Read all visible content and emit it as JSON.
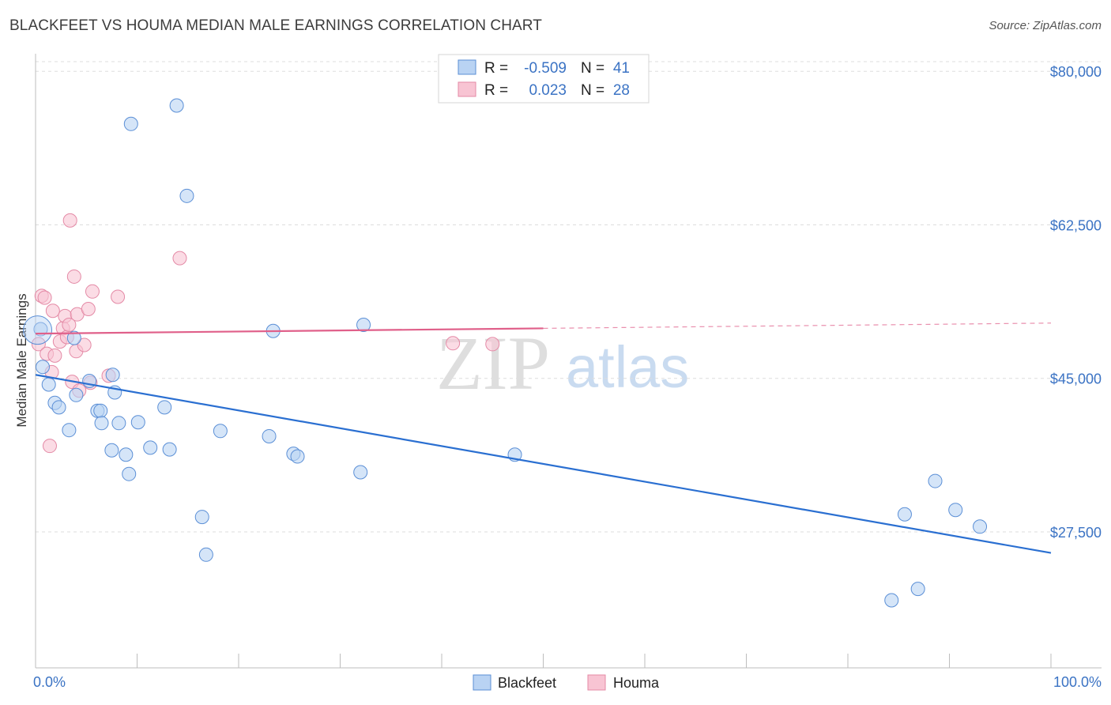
{
  "title": "BLACKFEET VS HOUMA MEDIAN MALE EARNINGS CORRELATION CHART",
  "source": "Source: ZipAtlas.com",
  "watermark": {
    "zip": "ZIP",
    "atlas": "atlas"
  },
  "colors": {
    "blackfeet_fill": "#b9d3f3",
    "blackfeet_stroke": "#5b8fd6",
    "blackfeet_line": "#2a6fd1",
    "houma_fill": "#f8c4d3",
    "houma_stroke": "#e48aa6",
    "houma_line": "#e0608a",
    "tick_text": "#3b73c4",
    "grid": "#dddddd"
  },
  "legend": {
    "rows": [
      {
        "r_label": "R =",
        "r_value": "-0.509",
        "n_label": "N =",
        "n_value": "41"
      },
      {
        "r_label": "R =",
        "r_value": "0.023",
        "n_label": "N =",
        "n_value": "28"
      }
    ]
  },
  "chart_data": {
    "type": "scatter",
    "title": "BLACKFEET VS HOUMA MEDIAN MALE EARNINGS CORRELATION CHART",
    "xlabel": "",
    "ylabel": "Median Male Earnings",
    "xlim": [
      0,
      100
    ],
    "ylim": [
      12000,
      82000
    ],
    "x_ticks_labels": [
      "0.0%",
      "100.0%"
    ],
    "y_ticks": [
      80000,
      62500,
      45000,
      27500
    ],
    "y_tick_labels": [
      "$80,000",
      "$62,500",
      "$45,000",
      "$27,500"
    ],
    "grid": true,
    "legend_position": "top-center",
    "series": [
      {
        "name": "Blackfeet",
        "points": [
          [
            0.5,
            50600
          ],
          [
            0.7,
            46300
          ],
          [
            1.3,
            44300
          ],
          [
            1.9,
            42200
          ],
          [
            2.3,
            41700
          ],
          [
            3.3,
            39100
          ],
          [
            3.8,
            49600
          ],
          [
            4.0,
            43100
          ],
          [
            6.1,
            41300
          ],
          [
            5.3,
            44700
          ],
          [
            6.4,
            41300
          ],
          [
            6.5,
            39900
          ],
          [
            7.5,
            36800
          ],
          [
            8.2,
            39900
          ],
          [
            7.6,
            45400
          ],
          [
            7.8,
            43400
          ],
          [
            9.2,
            34100
          ],
          [
            10.1,
            40000
          ],
          [
            8.9,
            36300
          ],
          [
            9.4,
            74000
          ],
          [
            11.3,
            37100
          ],
          [
            12.7,
            41700
          ],
          [
            13.2,
            36900
          ],
          [
            13.9,
            76100
          ],
          [
            14.9,
            65800
          ],
          [
            16.4,
            29200
          ],
          [
            16.8,
            24900
          ],
          [
            18.2,
            39000
          ],
          [
            23.0,
            38400
          ],
          [
            23.4,
            50400
          ],
          [
            25.4,
            36400
          ],
          [
            25.8,
            36100
          ],
          [
            32.0,
            34300
          ],
          [
            32.3,
            51100
          ],
          [
            47.2,
            36300
          ],
          [
            84.3,
            19700
          ],
          [
            85.6,
            29500
          ],
          [
            86.9,
            21000
          ],
          [
            88.6,
            33300
          ],
          [
            90.6,
            30000
          ],
          [
            93.0,
            28100
          ]
        ],
        "trend": {
          "x": [
            0,
            100
          ],
          "y": [
            45400,
            25100
          ]
        }
      },
      {
        "name": "Houma",
        "points": [
          [
            0.3,
            48900
          ],
          [
            0.6,
            54400
          ],
          [
            0.9,
            54200
          ],
          [
            1.1,
            47800
          ],
          [
            1.4,
            37300
          ],
          [
            1.6,
            45700
          ],
          [
            1.7,
            52700
          ],
          [
            1.9,
            47600
          ],
          [
            2.4,
            49200
          ],
          [
            2.7,
            50700
          ],
          [
            2.9,
            52100
          ],
          [
            3.1,
            49700
          ],
          [
            3.3,
            51100
          ],
          [
            3.4,
            63000
          ],
          [
            3.6,
            44600
          ],
          [
            3.8,
            56600
          ],
          [
            4.0,
            48100
          ],
          [
            4.1,
            52300
          ],
          [
            4.3,
            43600
          ],
          [
            4.8,
            48800
          ],
          [
            5.2,
            52900
          ],
          [
            5.4,
            44500
          ],
          [
            5.6,
            54900
          ],
          [
            7.2,
            45300
          ],
          [
            8.1,
            54300
          ],
          [
            14.2,
            58700
          ],
          [
            41.1,
            49000
          ],
          [
            45.0,
            48900
          ]
        ],
        "trend": {
          "x": [
            0,
            50
          ],
          "y": [
            50100,
            50700
          ]
        },
        "trend_dashed": {
          "x": [
            50,
            100
          ],
          "y": [
            50700,
            51300
          ]
        }
      }
    ]
  },
  "bottom_legend": [
    "Blackfeet",
    "Houma"
  ]
}
